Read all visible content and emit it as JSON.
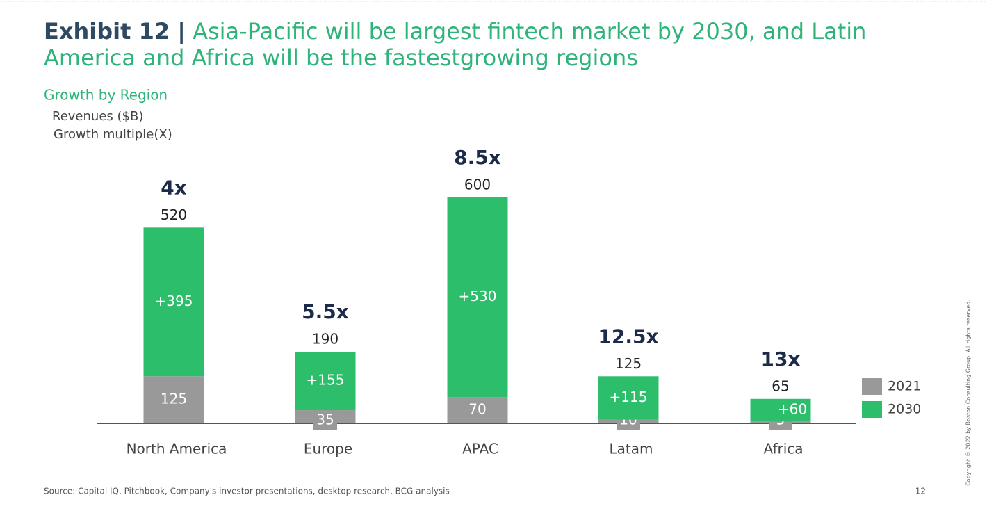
{
  "chart_data": {
    "type": "bar",
    "stacked": true,
    "title_prefix": "Exhibit 12 |",
    "title": "Asia-Pacific will be largest fintech market by 2030, and Latin America and Africa will be the fastestgrowing regions",
    "subtitle": "Growth by Region",
    "unit_label": "Revenues ($B)",
    "multiple_label": "Growth multiple(X)",
    "categories": [
      "North America",
      "Europe",
      "APAC",
      "Latam",
      "Africa"
    ],
    "series": [
      {
        "name": "2021",
        "color": "#999999",
        "values": [
          125,
          35,
          70,
          10,
          5
        ]
      },
      {
        "name": "2030",
        "color": "#2dbe6c",
        "values": [
          395,
          155,
          530,
          115,
          60
        ],
        "value_labels": [
          "+395",
          "+155",
          "+530",
          "+115",
          "+60"
        ]
      }
    ],
    "totals": [
      520,
      190,
      600,
      125,
      65
    ],
    "growth_multiples": {
      "values": [
        4,
        5.5,
        8.5,
        12.5,
        13
      ],
      "value_labels": [
        "4x",
        "5.5x",
        "8.5x",
        "12.5x",
        "13x"
      ]
    },
    "legend": "right",
    "source": "Source: Capital IQ, Pitchbook, Company's investor presentations, desktop research, BCG analysis",
    "page_number": "12",
    "copyright": "Copyright © 2022 by Boston Consulting Group. All rights reserved."
  }
}
